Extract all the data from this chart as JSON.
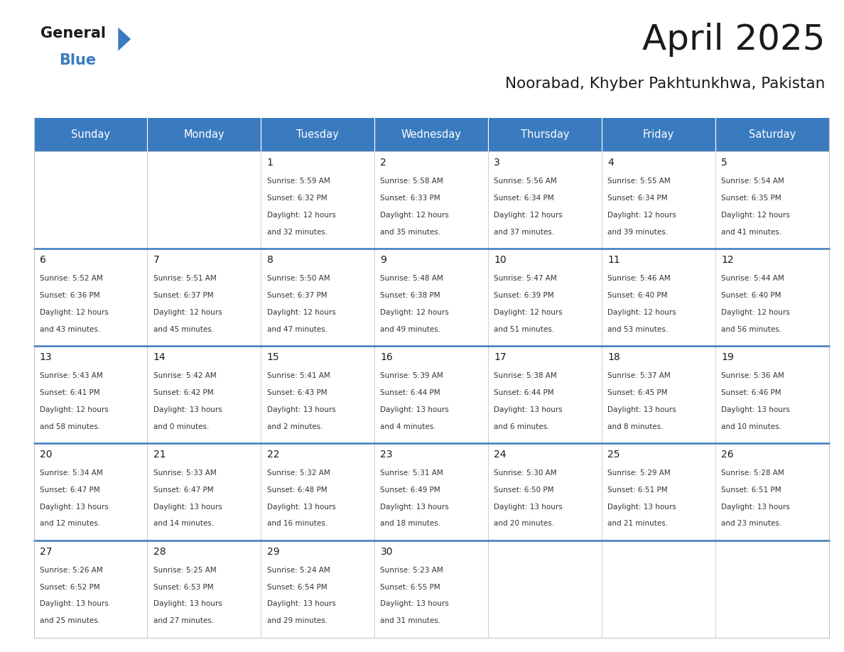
{
  "title": "April 2025",
  "subtitle": "Noorabad, Khyber Pakhtunkhwa, Pakistan",
  "days_of_week": [
    "Sunday",
    "Monday",
    "Tuesday",
    "Wednesday",
    "Thursday",
    "Friday",
    "Saturday"
  ],
  "header_bg": "#3a7bbf",
  "header_text": "#ffffff",
  "row_line_color": "#3a7bbf",
  "cell_bg": "#ffffff",
  "title_color": "#1a1a1a",
  "subtitle_color": "#1a1a1a",
  "day_num_color": "#1a1a1a",
  "cell_text_color": "#333333",
  "border_color": "#bbbbbb",
  "calendar_data": [
    [
      {
        "day": "",
        "sunrise": "",
        "sunset": "",
        "daylight": ""
      },
      {
        "day": "",
        "sunrise": "",
        "sunset": "",
        "daylight": ""
      },
      {
        "day": "1",
        "sunrise": "5:59 AM",
        "sunset": "6:32 PM",
        "daylight": "12 hours\nand 32 minutes."
      },
      {
        "day": "2",
        "sunrise": "5:58 AM",
        "sunset": "6:33 PM",
        "daylight": "12 hours\nand 35 minutes."
      },
      {
        "day": "3",
        "sunrise": "5:56 AM",
        "sunset": "6:34 PM",
        "daylight": "12 hours\nand 37 minutes."
      },
      {
        "day": "4",
        "sunrise": "5:55 AM",
        "sunset": "6:34 PM",
        "daylight": "12 hours\nand 39 minutes."
      },
      {
        "day": "5",
        "sunrise": "5:54 AM",
        "sunset": "6:35 PM",
        "daylight": "12 hours\nand 41 minutes."
      }
    ],
    [
      {
        "day": "6",
        "sunrise": "5:52 AM",
        "sunset": "6:36 PM",
        "daylight": "12 hours\nand 43 minutes."
      },
      {
        "day": "7",
        "sunrise": "5:51 AM",
        "sunset": "6:37 PM",
        "daylight": "12 hours\nand 45 minutes."
      },
      {
        "day": "8",
        "sunrise": "5:50 AM",
        "sunset": "6:37 PM",
        "daylight": "12 hours\nand 47 minutes."
      },
      {
        "day": "9",
        "sunrise": "5:48 AM",
        "sunset": "6:38 PM",
        "daylight": "12 hours\nand 49 minutes."
      },
      {
        "day": "10",
        "sunrise": "5:47 AM",
        "sunset": "6:39 PM",
        "daylight": "12 hours\nand 51 minutes."
      },
      {
        "day": "11",
        "sunrise": "5:46 AM",
        "sunset": "6:40 PM",
        "daylight": "12 hours\nand 53 minutes."
      },
      {
        "day": "12",
        "sunrise": "5:44 AM",
        "sunset": "6:40 PM",
        "daylight": "12 hours\nand 56 minutes."
      }
    ],
    [
      {
        "day": "13",
        "sunrise": "5:43 AM",
        "sunset": "6:41 PM",
        "daylight": "12 hours\nand 58 minutes."
      },
      {
        "day": "14",
        "sunrise": "5:42 AM",
        "sunset": "6:42 PM",
        "daylight": "13 hours\nand 0 minutes."
      },
      {
        "day": "15",
        "sunrise": "5:41 AM",
        "sunset": "6:43 PM",
        "daylight": "13 hours\nand 2 minutes."
      },
      {
        "day": "16",
        "sunrise": "5:39 AM",
        "sunset": "6:44 PM",
        "daylight": "13 hours\nand 4 minutes."
      },
      {
        "day": "17",
        "sunrise": "5:38 AM",
        "sunset": "6:44 PM",
        "daylight": "13 hours\nand 6 minutes."
      },
      {
        "day": "18",
        "sunrise": "5:37 AM",
        "sunset": "6:45 PM",
        "daylight": "13 hours\nand 8 minutes."
      },
      {
        "day": "19",
        "sunrise": "5:36 AM",
        "sunset": "6:46 PM",
        "daylight": "13 hours\nand 10 minutes."
      }
    ],
    [
      {
        "day": "20",
        "sunrise": "5:34 AM",
        "sunset": "6:47 PM",
        "daylight": "13 hours\nand 12 minutes."
      },
      {
        "day": "21",
        "sunrise": "5:33 AM",
        "sunset": "6:47 PM",
        "daylight": "13 hours\nand 14 minutes."
      },
      {
        "day": "22",
        "sunrise": "5:32 AM",
        "sunset": "6:48 PM",
        "daylight": "13 hours\nand 16 minutes."
      },
      {
        "day": "23",
        "sunrise": "5:31 AM",
        "sunset": "6:49 PM",
        "daylight": "13 hours\nand 18 minutes."
      },
      {
        "day": "24",
        "sunrise": "5:30 AM",
        "sunset": "6:50 PM",
        "daylight": "13 hours\nand 20 minutes."
      },
      {
        "day": "25",
        "sunrise": "5:29 AM",
        "sunset": "6:51 PM",
        "daylight": "13 hours\nand 21 minutes."
      },
      {
        "day": "26",
        "sunrise": "5:28 AM",
        "sunset": "6:51 PM",
        "daylight": "13 hours\nand 23 minutes."
      }
    ],
    [
      {
        "day": "27",
        "sunrise": "5:26 AM",
        "sunset": "6:52 PM",
        "daylight": "13 hours\nand 25 minutes."
      },
      {
        "day": "28",
        "sunrise": "5:25 AM",
        "sunset": "6:53 PM",
        "daylight": "13 hours\nand 27 minutes."
      },
      {
        "day": "29",
        "sunrise": "5:24 AM",
        "sunset": "6:54 PM",
        "daylight": "13 hours\nand 29 minutes."
      },
      {
        "day": "30",
        "sunrise": "5:23 AM",
        "sunset": "6:55 PM",
        "daylight": "13 hours\nand 31 minutes."
      },
      {
        "day": "",
        "sunrise": "",
        "sunset": "",
        "daylight": ""
      },
      {
        "day": "",
        "sunrise": "",
        "sunset": "",
        "daylight": ""
      },
      {
        "day": "",
        "sunrise": "",
        "sunset": "",
        "daylight": ""
      }
    ]
  ]
}
